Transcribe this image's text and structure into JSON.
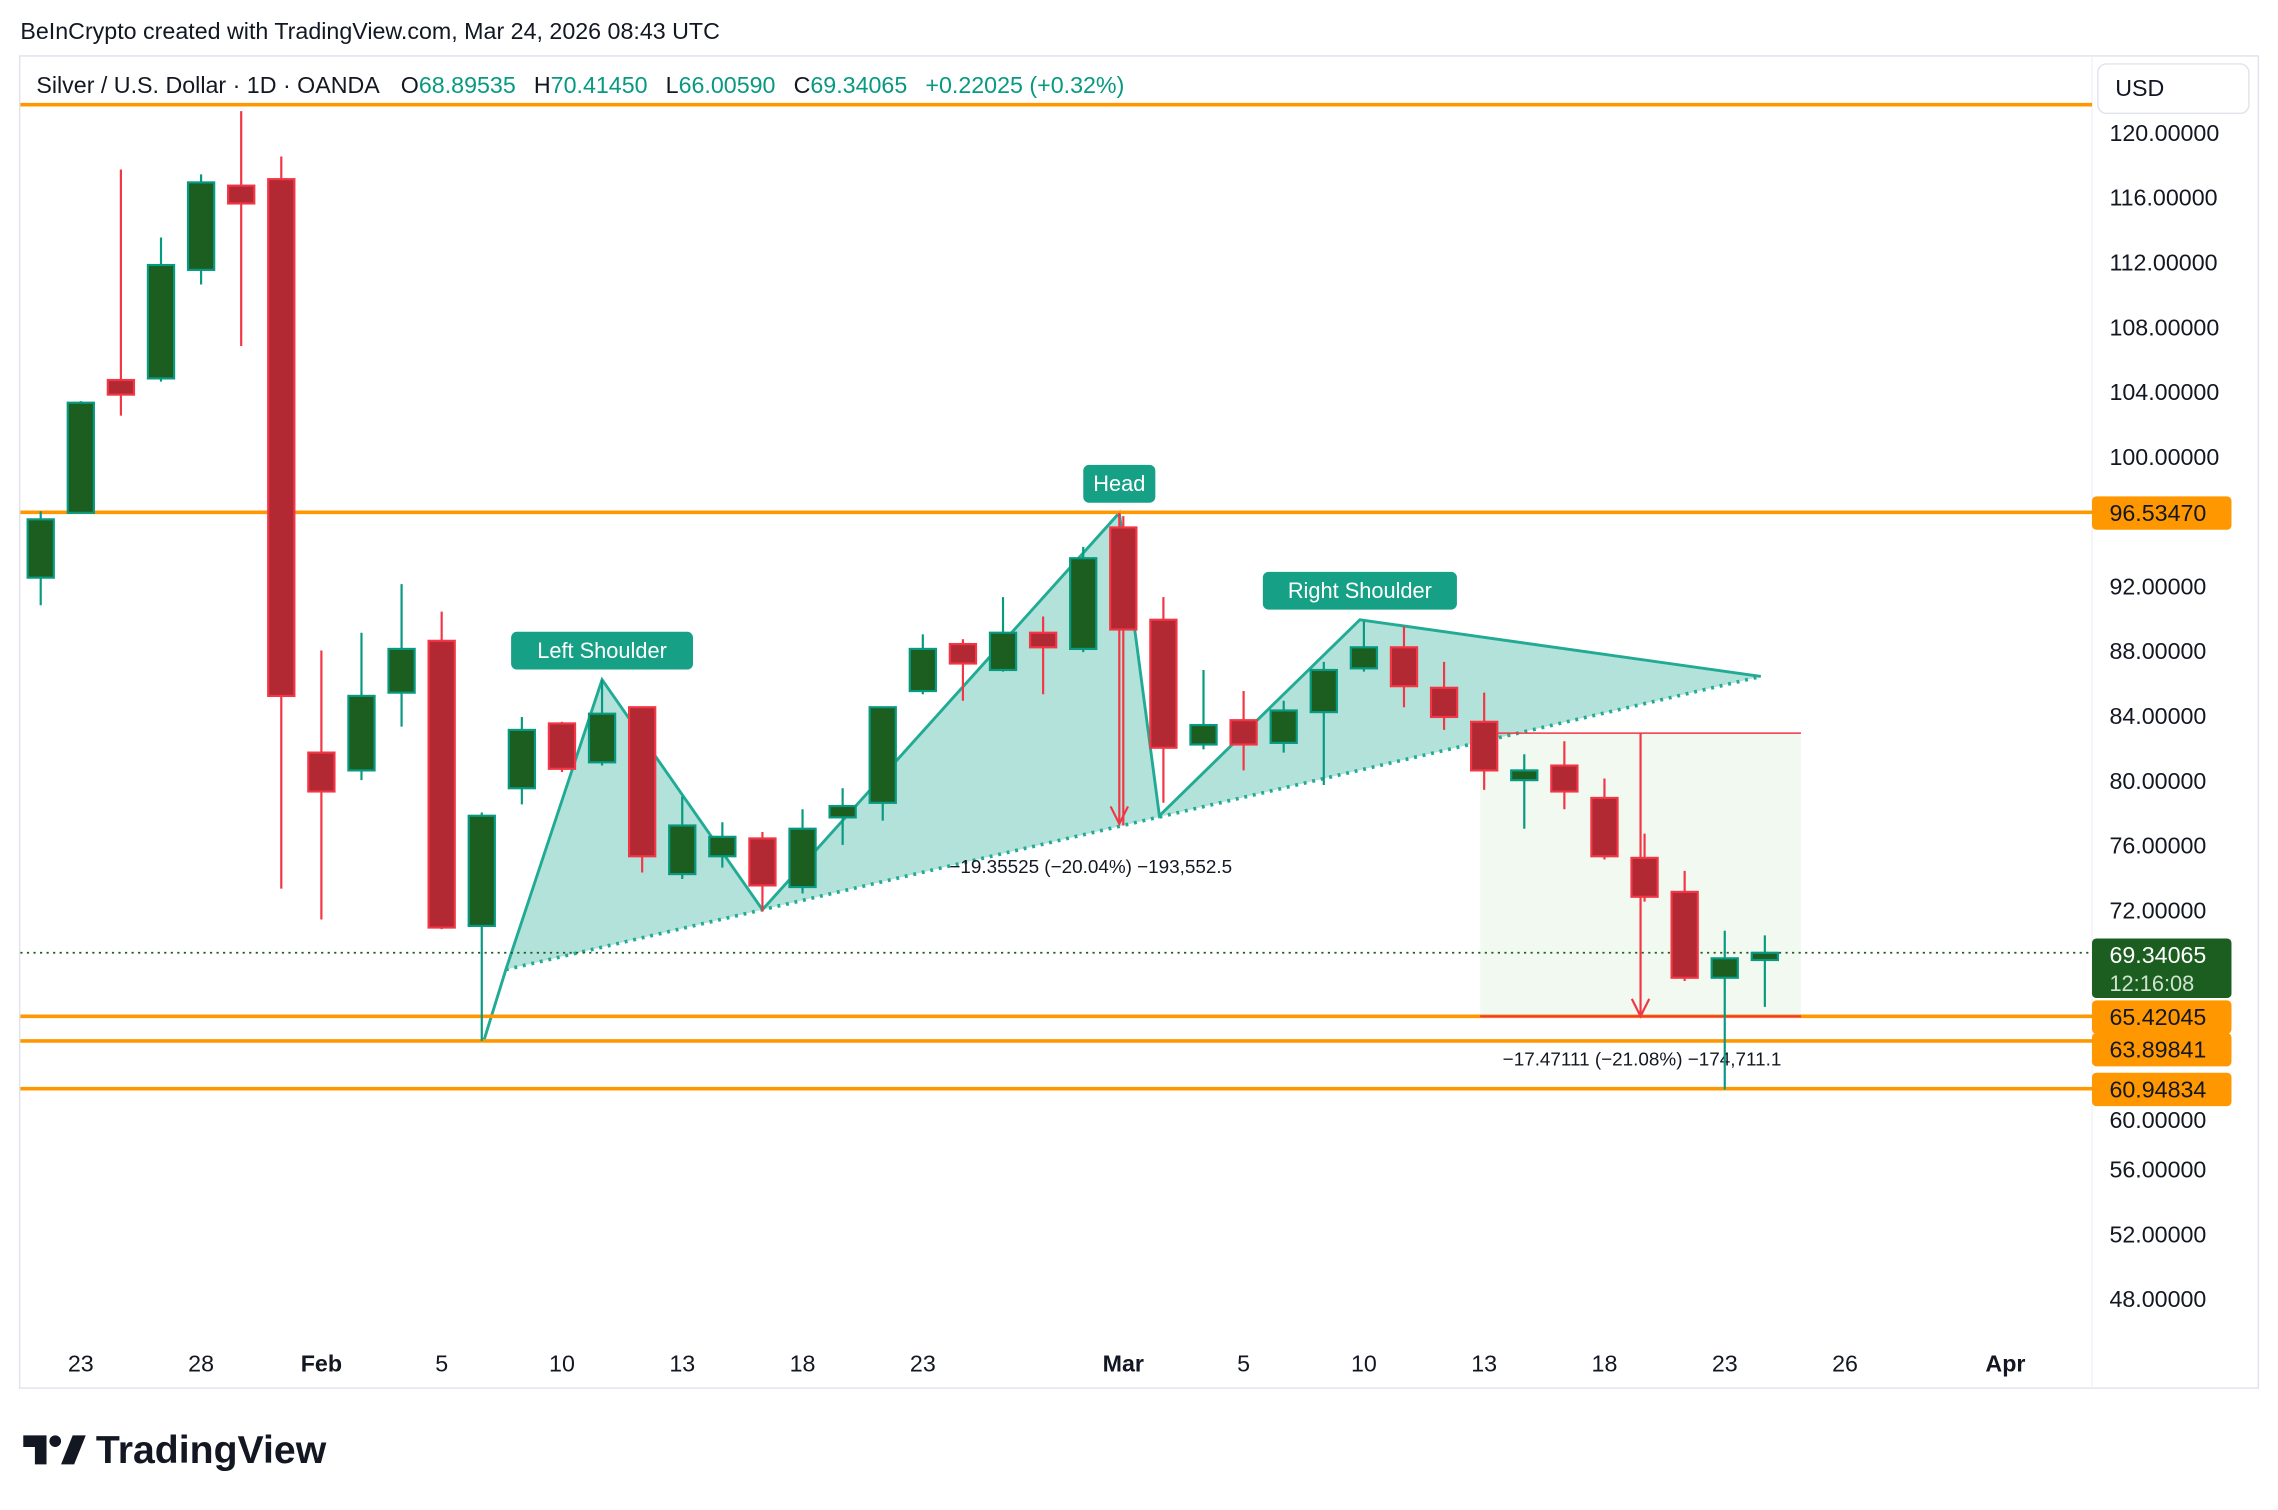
{
  "header": {
    "credit": "BeInCrypto created with TradingView.com, Mar 24, 2026 08:43 UTC"
  },
  "legend": {
    "symbol": "Silver / U.S. Dollar · 1D · OANDA",
    "o_label": "O",
    "o": "68.89535",
    "h_label": "H",
    "h": "70.41450",
    "l_label": "L",
    "l": "66.00590",
    "c_label": "C",
    "c": "69.34065",
    "change": "+0.22025 (+0.32%)"
  },
  "currency_button": "USD",
  "logo_text": "TradingView",
  "colors": {
    "up_body": "#1b5e20",
    "up_border": "#089981",
    "down_body": "#b22833",
    "down_border": "#f23645",
    "level": "#ff9800",
    "pattern": "#22ab94",
    "measure": "#f23645",
    "legend_value": "#089981"
  },
  "chart_data": {
    "type": "candlestick",
    "ylim": [
      46,
      124
    ],
    "y_ticks": [
      "120.00000",
      "116.00000",
      "112.00000",
      "108.00000",
      "104.00000",
      "100.00000",
      "92.00000",
      "88.00000",
      "84.00000",
      "80.00000",
      "76.00000",
      "72.00000",
      "60.00000",
      "56.00000",
      "52.00000",
      "48.00000"
    ],
    "x_ticks": [
      {
        "bar": 1,
        "label": "23"
      },
      {
        "bar": 4,
        "label": "28"
      },
      {
        "bar": 7,
        "label": "Feb"
      },
      {
        "bar": 10,
        "label": "5"
      },
      {
        "bar": 13,
        "label": "10"
      },
      {
        "bar": 16,
        "label": "13"
      },
      {
        "bar": 19,
        "label": "18"
      },
      {
        "bar": 22,
        "label": "23"
      },
      {
        "bar": 27,
        "label": "Mar"
      },
      {
        "bar": 30,
        "label": "5"
      },
      {
        "bar": 33,
        "label": "10"
      },
      {
        "bar": 36,
        "label": "13"
      },
      {
        "bar": 39,
        "label": "18"
      },
      {
        "bar": 42,
        "label": "23"
      },
      {
        "bar": 45,
        "label": "26"
      },
      {
        "bar": 49,
        "label": "Apr"
      }
    ],
    "candles": [
      [
        92.5,
        96.6,
        90.8,
        96.1
      ],
      [
        96.5,
        103.4,
        96.5,
        103.3
      ],
      [
        104.7,
        117.7,
        102.5,
        103.8
      ],
      [
        104.8,
        113.5,
        104.6,
        111.8
      ],
      [
        111.5,
        117.4,
        110.6,
        116.9
      ],
      [
        116.7,
        121.3,
        106.8,
        115.6
      ],
      [
        117.1,
        118.5,
        73.3,
        85.2
      ],
      [
        81.7,
        88.0,
        71.4,
        79.3
      ],
      [
        80.6,
        89.1,
        80.0,
        85.2
      ],
      [
        85.4,
        92.1,
        83.3,
        88.1
      ],
      [
        88.6,
        90.4,
        70.8,
        70.9
      ],
      [
        71.0,
        78.0,
        63.9,
        77.8
      ],
      [
        79.5,
        83.9,
        78.5,
        83.1
      ],
      [
        83.5,
        83.6,
        80.5,
        80.7
      ],
      [
        81.1,
        86.2,
        80.9,
        84.1
      ],
      [
        84.5,
        84.5,
        74.3,
        75.3
      ],
      [
        74.2,
        79.0,
        73.9,
        77.2
      ],
      [
        75.3,
        77.4,
        74.6,
        76.5
      ],
      [
        76.4,
        76.8,
        71.9,
        73.5
      ],
      [
        73.4,
        78.2,
        73.0,
        77.0
      ],
      [
        77.7,
        79.5,
        76.0,
        78.4
      ],
      [
        78.6,
        84.5,
        77.5,
        84.5
      ],
      [
        85.5,
        89.0,
        85.3,
        88.1
      ],
      [
        88.4,
        88.7,
        84.9,
        87.2
      ],
      [
        86.8,
        91.3,
        86.7,
        89.1
      ],
      [
        89.1,
        90.1,
        85.3,
        88.2
      ],
      [
        88.1,
        94.4,
        87.9,
        93.7
      ],
      [
        95.6,
        96.3,
        77.2,
        89.3
      ],
      [
        89.9,
        91.3,
        78.6,
        82.0
      ],
      [
        82.2,
        86.8,
        81.9,
        83.4
      ],
      [
        83.7,
        85.5,
        80.6,
        82.2
      ],
      [
        82.3,
        84.9,
        81.7,
        84.3
      ],
      [
        84.2,
        87.3,
        79.7,
        86.8
      ],
      [
        86.9,
        89.8,
        86.7,
        88.2
      ],
      [
        88.2,
        89.5,
        84.5,
        85.8
      ],
      [
        85.7,
        87.3,
        83.1,
        83.9
      ],
      [
        83.6,
        85.4,
        79.4,
        80.6
      ],
      [
        80.0,
        81.6,
        77.0,
        80.6
      ],
      [
        80.9,
        82.4,
        78.2,
        79.3
      ],
      [
        78.9,
        80.1,
        75.1,
        75.3
      ],
      [
        75.2,
        76.7,
        72.5,
        72.8
      ],
      [
        73.1,
        74.4,
        67.6,
        67.8
      ],
      [
        67.8,
        70.7,
        60.9,
        69.0
      ],
      [
        68.89535,
        70.4145,
        66.0059,
        69.34065
      ]
    ],
    "levels": [
      121.7,
      96.5347,
      65.42045,
      63.89841,
      60.94834
    ],
    "level_labels": [
      "96.53470",
      "65.42045",
      "63.89841",
      "60.94834"
    ],
    "last_price": "69.34065",
    "countdown": "12:16:08",
    "pattern": {
      "zigzag": [
        [
          11.05,
          63.9
        ],
        [
          11.6,
          68.3
        ],
        [
          14,
          86.2
        ],
        [
          18,
          72.0
        ],
        [
          26.9,
          96.5
        ],
        [
          27.9,
          77.8
        ],
        [
          32.9,
          89.9
        ],
        [
          42.9,
          86.4
        ]
      ],
      "neckline": [
        [
          11.6,
          68.3
        ],
        [
          42.9,
          86.4
        ]
      ],
      "labels": [
        {
          "text": "Left Shoulder",
          "bar": 14,
          "price": 86.2
        },
        {
          "text": "Head",
          "bar": 26.9,
          "price": 96.5
        },
        {
          "text": "Right Shoulder",
          "bar": 32.9,
          "price": 89.9
        }
      ]
    },
    "measures": [
      {
        "bar": 26.9,
        "from": 96.5,
        "to": 77.3,
        "text": "−19.35525 (−20.04%) −193,552.5"
      },
      {
        "bar": 39.9,
        "bar_from": 35.9,
        "bar_to": 43.9,
        "from": 82.9,
        "to": 65.42045,
        "text": "−17.47111 (−21.08%) −174,711.1"
      }
    ]
  }
}
